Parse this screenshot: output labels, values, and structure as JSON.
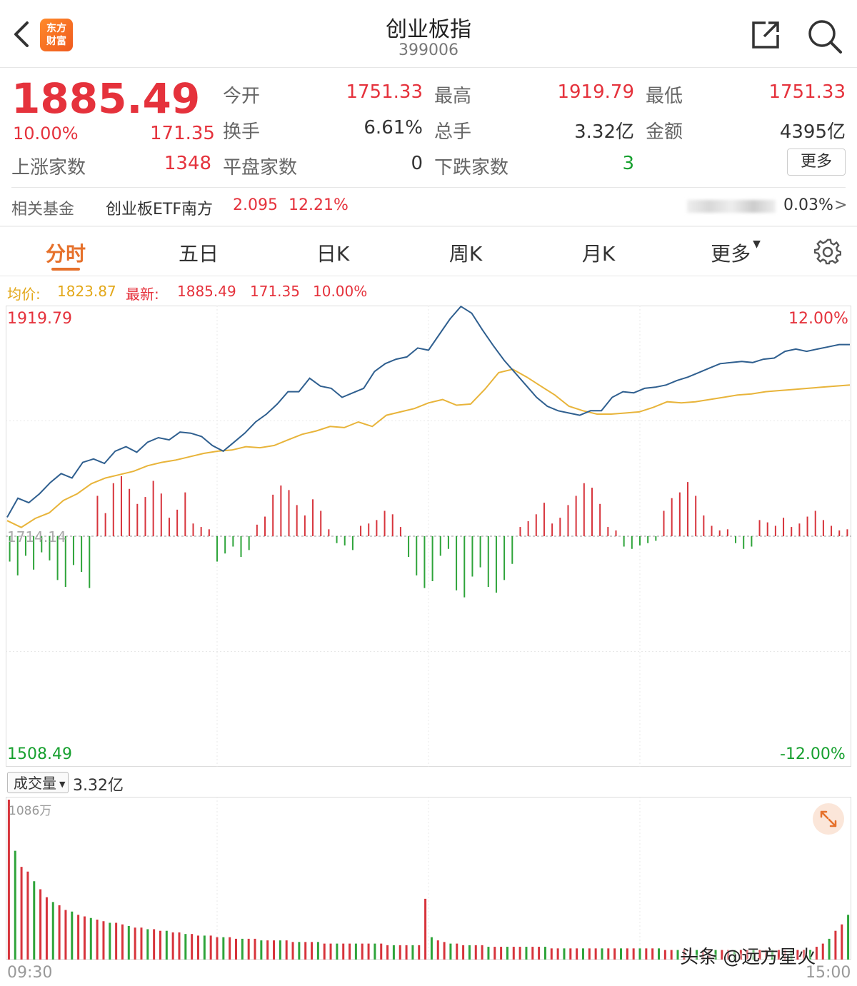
{
  "header": {
    "title": "创业板指",
    "code": "399006",
    "logo_text": "东方财富"
  },
  "quote": {
    "price": "1885.49",
    "change_pct": "10.00%",
    "change": "171.35",
    "stats": [
      {
        "label": "今开",
        "value": "1751.33",
        "color": "red"
      },
      {
        "label": "最高",
        "value": "1919.79",
        "color": "red"
      },
      {
        "label": "最低",
        "value": "1751.33",
        "color": "red"
      },
      {
        "label": "换手",
        "value": "6.61%",
        "color": "dark"
      },
      {
        "label": "总手",
        "value": "3.32亿",
        "color": "dark"
      },
      {
        "label": "金额",
        "value": "4395亿",
        "color": "dark"
      },
      {
        "label": "上涨家数",
        "value": "1348",
        "color": "red"
      },
      {
        "label": "平盘家数",
        "value": "0",
        "color": "dark"
      },
      {
        "label": "下跌家数",
        "value": "3",
        "color": "green"
      }
    ],
    "more_label": "更多"
  },
  "fund": {
    "label": "相关基金",
    "name": "创业板ETF南方",
    "price": "2.095",
    "pct": "12.21%",
    "right_value": "0.03%",
    "chevron": ">"
  },
  "tabs": [
    "分时",
    "五日",
    "日K",
    "周K",
    "月K",
    "更多"
  ],
  "active_tab": 0,
  "legend": {
    "avg_label": "均价:",
    "avg_value": "1823.87",
    "latest_label": "最新:",
    "latest_value": "1885.49",
    "latest_change": "171.35",
    "latest_pct": "10.00%"
  },
  "chart_data": {
    "type": "line",
    "y_axis_left": {
      "max": "1919.79",
      "mid": "1714.14",
      "min": "1508.49"
    },
    "y_axis_right": {
      "max": "12.00%",
      "min": "-12.00%"
    },
    "ylim": [
      1508.49,
      1919.79
    ],
    "x_labels": [
      "09:30",
      "15:00"
    ],
    "colors": {
      "price": "#2f5f8f",
      "average": "#e8b43a",
      "up": "#d7343c",
      "down": "#2ea43a"
    },
    "price_series": [
      1731,
      1748,
      1744,
      1752,
      1762,
      1770,
      1766,
      1780,
      1783,
      1779,
      1790,
      1794,
      1789,
      1798,
      1802,
      1800,
      1807,
      1806,
      1803,
      1795,
      1790,
      1798,
      1806,
      1816,
      1823,
      1832,
      1843,
      1843,
      1855,
      1848,
      1846,
      1838,
      1842,
      1846,
      1861,
      1868,
      1872,
      1874,
      1882,
      1880,
      1894,
      1908,
      1919,
      1913,
      1898,
      1884,
      1871,
      1860,
      1849,
      1838,
      1830,
      1826,
      1824,
      1822,
      1826,
      1826,
      1838,
      1843,
      1842,
      1846,
      1847,
      1849,
      1853,
      1856,
      1860,
      1864,
      1868,
      1869,
      1870,
      1869,
      1872,
      1873,
      1879,
      1881,
      1879,
      1881,
      1883,
      1885,
      1885
    ],
    "avg_series": [
      1728,
      1722,
      1730,
      1735,
      1746,
      1752,
      1761,
      1766,
      1769,
      1772,
      1777,
      1780,
      1782,
      1785,
      1788,
      1790,
      1791,
      1794,
      1793,
      1795,
      1800,
      1805,
      1808,
      1812,
      1811,
      1816,
      1812,
      1822,
      1825,
      1828,
      1833,
      1836,
      1831,
      1832,
      1845,
      1860,
      1863,
      1856,
      1848,
      1840,
      1830,
      1826,
      1823,
      1823,
      1824,
      1825,
      1829,
      1834,
      1833,
      1834,
      1836,
      1838,
      1840,
      1841,
      1843,
      1844,
      1845,
      1846,
      1847,
      1848,
      1849
    ],
    "timeline_bars": [
      -22,
      -34,
      -17,
      -29,
      -14,
      -21,
      -38,
      -44,
      -25,
      -31,
      -45,
      35,
      20,
      46,
      52,
      41,
      28,
      34,
      48,
      37,
      16,
      23,
      38,
      11,
      8,
      6,
      -22,
      -15,
      -9,
      -18,
      -12,
      10,
      17,
      36,
      44,
      40,
      27,
      18,
      32,
      22,
      6,
      -6,
      -8,
      -12,
      9,
      11,
      14,
      22,
      19,
      8,
      -18,
      -34,
      -45,
      -39,
      -17,
      -11,
      -47,
      -53,
      -35,
      -27,
      -44,
      -49,
      -38,
      -24,
      8,
      13,
      19,
      29,
      11,
      16,
      27,
      35,
      46,
      42,
      28,
      8,
      5,
      -9,
      -11,
      -8,
      -6,
      -4,
      22,
      33,
      38,
      47,
      35,
      18,
      9,
      5,
      6,
      -6,
      -11,
      -9,
      14,
      12,
      9,
      16,
      8,
      11,
      17,
      22,
      14,
      9,
      5,
      6
    ],
    "volume_bars": [
      100,
      68,
      58,
      55,
      49,
      44,
      39,
      36,
      34,
      31,
      30,
      28,
      27,
      26,
      25,
      24,
      23,
      23,
      22,
      21,
      20,
      20,
      19,
      19,
      18,
      18,
      17,
      17,
      16,
      16,
      15,
      15,
      15,
      14,
      14,
      14,
      13,
      13,
      13,
      13,
      12,
      12,
      12,
      12,
      12,
      11,
      11,
      11,
      11,
      11,
      10,
      10,
      10,
      10,
      10,
      10,
      10,
      10,
      10,
      10,
      9,
      9,
      9,
      9,
      9,
      9,
      38,
      14,
      12,
      11,
      10,
      10,
      9,
      9,
      9,
      9,
      8,
      8,
      8,
      8,
      8,
      8,
      8,
      8,
      8,
      8,
      7,
      7,
      7,
      7,
      7,
      7,
      7,
      7,
      7,
      7,
      7,
      7,
      7,
      7,
      7,
      7,
      7,
      7,
      6,
      6,
      6,
      6,
      6,
      6,
      6,
      6,
      6,
      6,
      6,
      6,
      6,
      6,
      6,
      6,
      6,
      6,
      6,
      6,
      6,
      6,
      6,
      6,
      8,
      10,
      13,
      18,
      22,
      28
    ]
  },
  "volume": {
    "label": "成交量",
    "total": "3.32亿",
    "max_label": "1086万"
  },
  "watermark": "头条 @远方星火"
}
